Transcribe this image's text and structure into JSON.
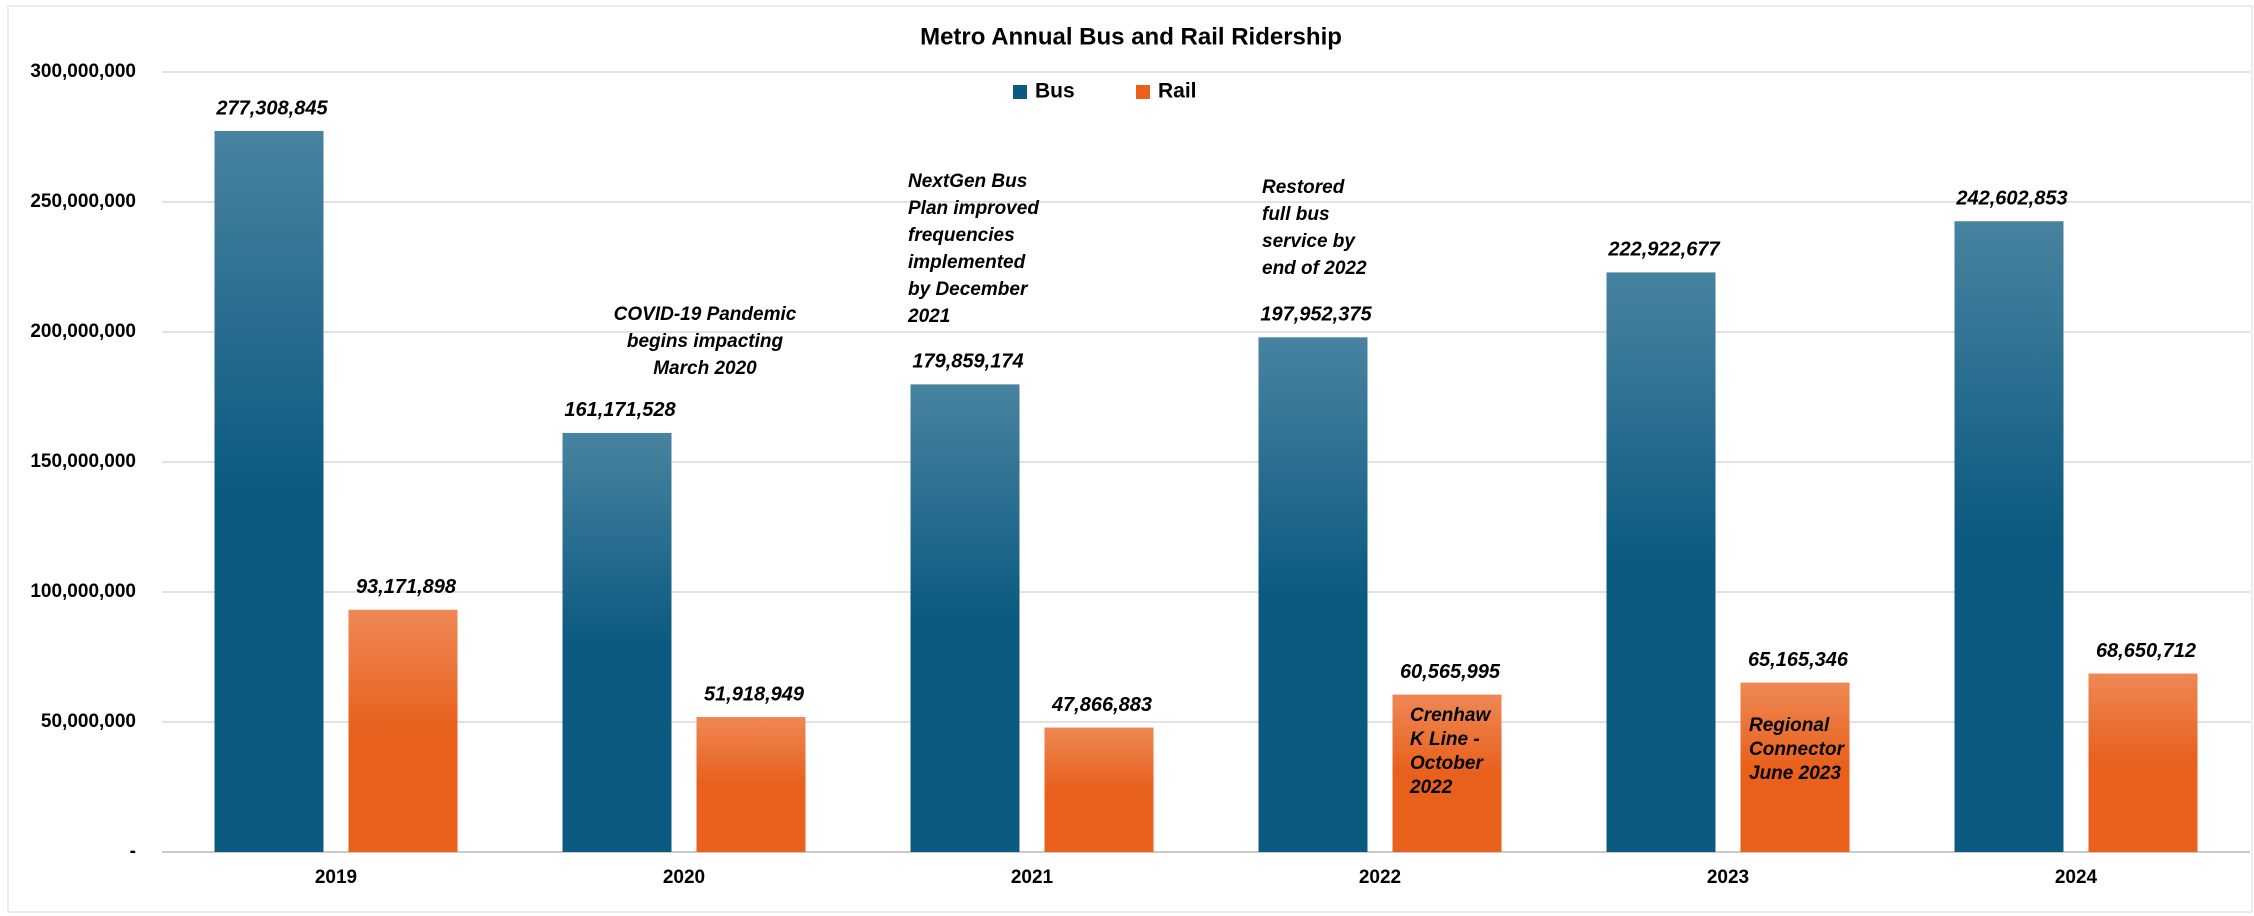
{
  "chart_data": {
    "type": "bar",
    "title": "Metro Annual Bus and Rail Ridership",
    "categories": [
      "2019",
      "2020",
      "2021",
      "2022",
      "2023",
      "2024"
    ],
    "series": [
      {
        "name": "Bus",
        "color": "#0b5a80",
        "values": [
          277308845,
          161171528,
          179859174,
          197952375,
          222922677,
          242602853
        ],
        "value_labels": [
          "277,308,845",
          "161,171,528",
          "179,859,174",
          "197,952,375",
          "222,922,677",
          "242,602,853"
        ]
      },
      {
        "name": "Rail",
        "color": "#e8601c",
        "values": [
          93171898,
          51918949,
          47866883,
          60565995,
          65165346,
          68650712
        ],
        "value_labels": [
          "93,171,898",
          "51,918,949",
          "47,866,883",
          "60,565,995",
          "65,165,346",
          "68,650,712"
        ]
      }
    ],
    "ylim": [
      0,
      300000000
    ],
    "yticks": [
      {
        "value": 0,
        "label": "-"
      },
      {
        "value": 50000000,
        "label": "50,000,000"
      },
      {
        "value": 100000000,
        "label": "100,000,000"
      },
      {
        "value": 150000000,
        "label": "150,000,000"
      },
      {
        "value": 200000000,
        "label": "200,000,000"
      },
      {
        "value": 250000000,
        "label": "250,000,000"
      },
      {
        "value": 300000000,
        "label": "300,000,000"
      }
    ],
    "grid": true,
    "legend": "top",
    "annotations": [
      {
        "lines": [
          "COVID-19 Pandemic",
          "begins impacting",
          "March 2020"
        ]
      },
      {
        "lines": [
          "NextGen Bus",
          "Plan improved",
          "frequencies",
          "implemented",
          "by December",
          "2021"
        ]
      },
      {
        "lines": [
          "Restored",
          "full bus",
          "service by",
          "end of 2022"
        ]
      },
      {
        "lines": [
          "Crenhaw",
          "K Line -",
          "October",
          "2022"
        ]
      },
      {
        "lines": [
          "Regional",
          "Connector",
          "June 2023"
        ]
      }
    ]
  }
}
